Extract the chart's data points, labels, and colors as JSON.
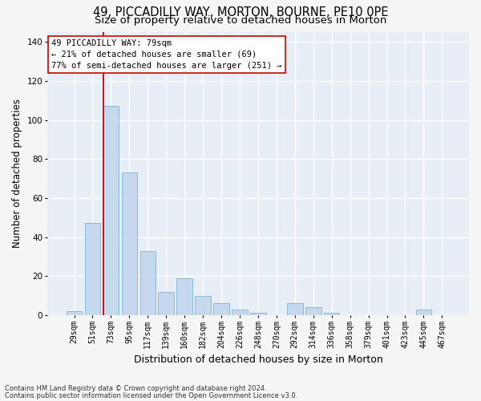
{
  "title1": "49, PICCADILLY WAY, MORTON, BOURNE, PE10 0PE",
  "title2": "Size of property relative to detached houses in Morton",
  "xlabel": "Distribution of detached houses by size in Morton",
  "ylabel": "Number of detached properties",
  "categories": [
    "29sqm",
    "51sqm",
    "73sqm",
    "95sqm",
    "117sqm",
    "139sqm",
    "160sqm",
    "182sqm",
    "204sqm",
    "226sqm",
    "248sqm",
    "270sqm",
    "292sqm",
    "314sqm",
    "336sqm",
    "358sqm",
    "379sqm",
    "401sqm",
    "423sqm",
    "445sqm",
    "467sqm"
  ],
  "values": [
    2,
    47,
    107,
    73,
    33,
    12,
    19,
    10,
    6,
    3,
    1,
    0,
    6,
    4,
    1,
    0,
    0,
    0,
    0,
    3,
    0
  ],
  "bar_color": "#c5d8ed",
  "bar_edge_color": "#7fb3d6",
  "vline_color": "#cc0000",
  "vline_index": 2,
  "annotation_text": "49 PICCADILLY WAY: 79sqm\n← 21% of detached houses are smaller (69)\n77% of semi-detached houses are larger (251) →",
  "annotation_box_color": "#ffffff",
  "annotation_box_edge": "#cc0000",
  "footnote1": "Contains HM Land Registry data © Crown copyright and database right 2024.",
  "footnote2": "Contains public sector information licensed under the Open Government Licence v3.0.",
  "ylim": [
    0,
    145
  ],
  "background_color": "#e8eef5",
  "grid_color": "#ffffff",
  "title1_fontsize": 10.5,
  "title2_fontsize": 9.5,
  "tick_fontsize": 7,
  "ylabel_fontsize": 8.5,
  "xlabel_fontsize": 9,
  "annot_fontsize": 7.5,
  "footnote_fontsize": 6
}
